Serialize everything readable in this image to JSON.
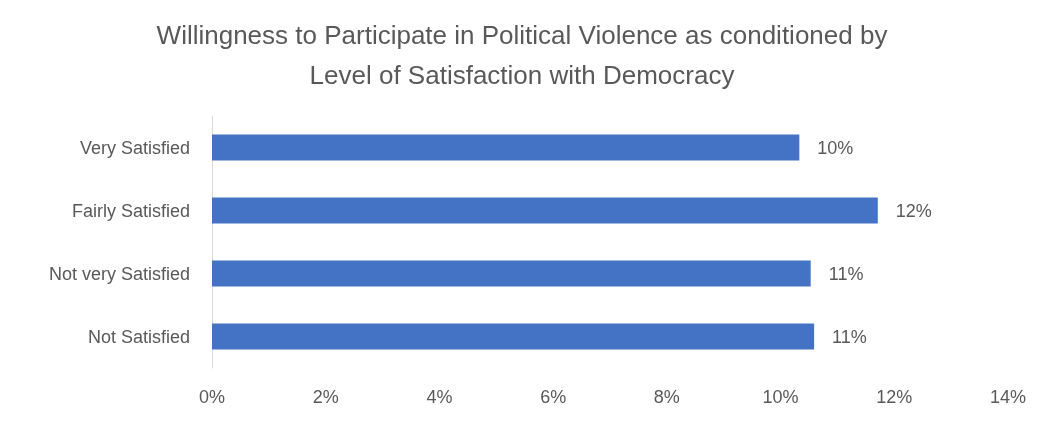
{
  "chart_data": {
    "type": "bar",
    "orientation": "horizontal",
    "title": "Willingness to Participate in Political Violence as conditioned by\nLevel of Satisfaction with Democracy",
    "categories": [
      "Very Satisfied",
      "Fairly Satisfied",
      "Not very Satisfied",
      "Not Satisfied"
    ],
    "values": [
      10.33,
      11.71,
      10.53,
      10.59
    ],
    "color": "#4472c4",
    "value_labels": [
      "10%",
      "12%",
      "11%",
      "11%"
    ],
    "xlim": [
      0,
      14
    ],
    "xticks": [
      {
        "value": 0,
        "label": "0%"
      },
      {
        "value": 2,
        "label": "2%"
      },
      {
        "value": 4,
        "label": "4%"
      },
      {
        "value": 6,
        "label": "6%"
      },
      {
        "value": 8,
        "label": "8%"
      },
      {
        "value": 10,
        "label": "10%"
      },
      {
        "value": 12,
        "label": "12%"
      },
      {
        "value": 14,
        "label": "14%"
      }
    ],
    "grid": false
  }
}
